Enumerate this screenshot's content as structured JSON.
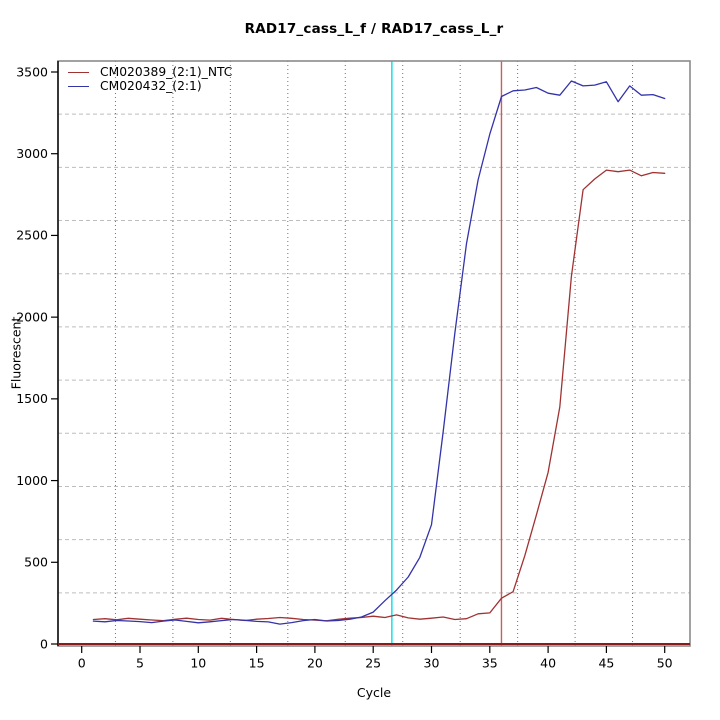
{
  "chart_data": {
    "type": "line",
    "title": "RAD17_cass_L_f / RAD17_cass_L_r",
    "xlabel": "Cycle",
    "ylabel": "Fluorescent",
    "xlim": [
      0,
      50
    ],
    "ylim": [
      0,
      3500
    ],
    "xticks": [
      0,
      5,
      10,
      15,
      20,
      25,
      30,
      35,
      40,
      45,
      50
    ],
    "yticks": [
      0,
      500,
      1000,
      1500,
      2000,
      2500,
      3000,
      3500
    ],
    "grid": "on",
    "legend_position": "top-left",
    "x": [
      1,
      2,
      3,
      4,
      5,
      6,
      7,
      8,
      9,
      10,
      11,
      12,
      13,
      14,
      15,
      16,
      17,
      18,
      19,
      20,
      21,
      22,
      23,
      24,
      25,
      26,
      27,
      28,
      29,
      30,
      31,
      32,
      33,
      34,
      35,
      36,
      37,
      38,
      39,
      40,
      41,
      42,
      43,
      44,
      45,
      46,
      47,
      48,
      49,
      50
    ],
    "series": [
      {
        "name": "CM020389_(2:1)_NTC",
        "color": "#a03232",
        "values": [
          150,
          155,
          148,
          157,
          152,
          147,
          143,
          151,
          158,
          150,
          146,
          157,
          150,
          144,
          152,
          156,
          162,
          157,
          150,
          146,
          142,
          151,
          158,
          162,
          170,
          162,
          178,
          160,
          152,
          158,
          165,
          150,
          155,
          185,
          190,
          280,
          320,
          540,
          790,
          1050,
          1450,
          2250,
          2780,
          2845,
          2900,
          2890,
          2900,
          2865,
          2885,
          2880
        ]
      },
      {
        "name": "CM020432_(2:1)",
        "color": "#3333aa",
        "values": [
          140,
          136,
          144,
          141,
          137,
          131,
          140,
          147,
          138,
          130,
          136,
          143,
          150,
          145,
          138,
          135,
          122,
          131,
          143,
          150,
          141,
          144,
          152,
          165,
          195,
          265,
          330,
          410,
          530,
          730,
          1300,
          1900,
          2450,
          2840,
          3120,
          3350,
          3385,
          3390,
          3405,
          3370,
          3358,
          3445,
          3415,
          3420,
          3440,
          3318,
          3415,
          3358,
          3362,
          3338
        ]
      }
    ],
    "vlines": [
      {
        "name": "ct-marker-cyan",
        "x": 26.6,
        "color": "#00e0e6"
      },
      {
        "name": "ct-marker-red",
        "x": 36.0,
        "color": "#cd5c5c"
      }
    ],
    "baseline": {
      "y": 0,
      "color": "#8b1a1a"
    }
  }
}
